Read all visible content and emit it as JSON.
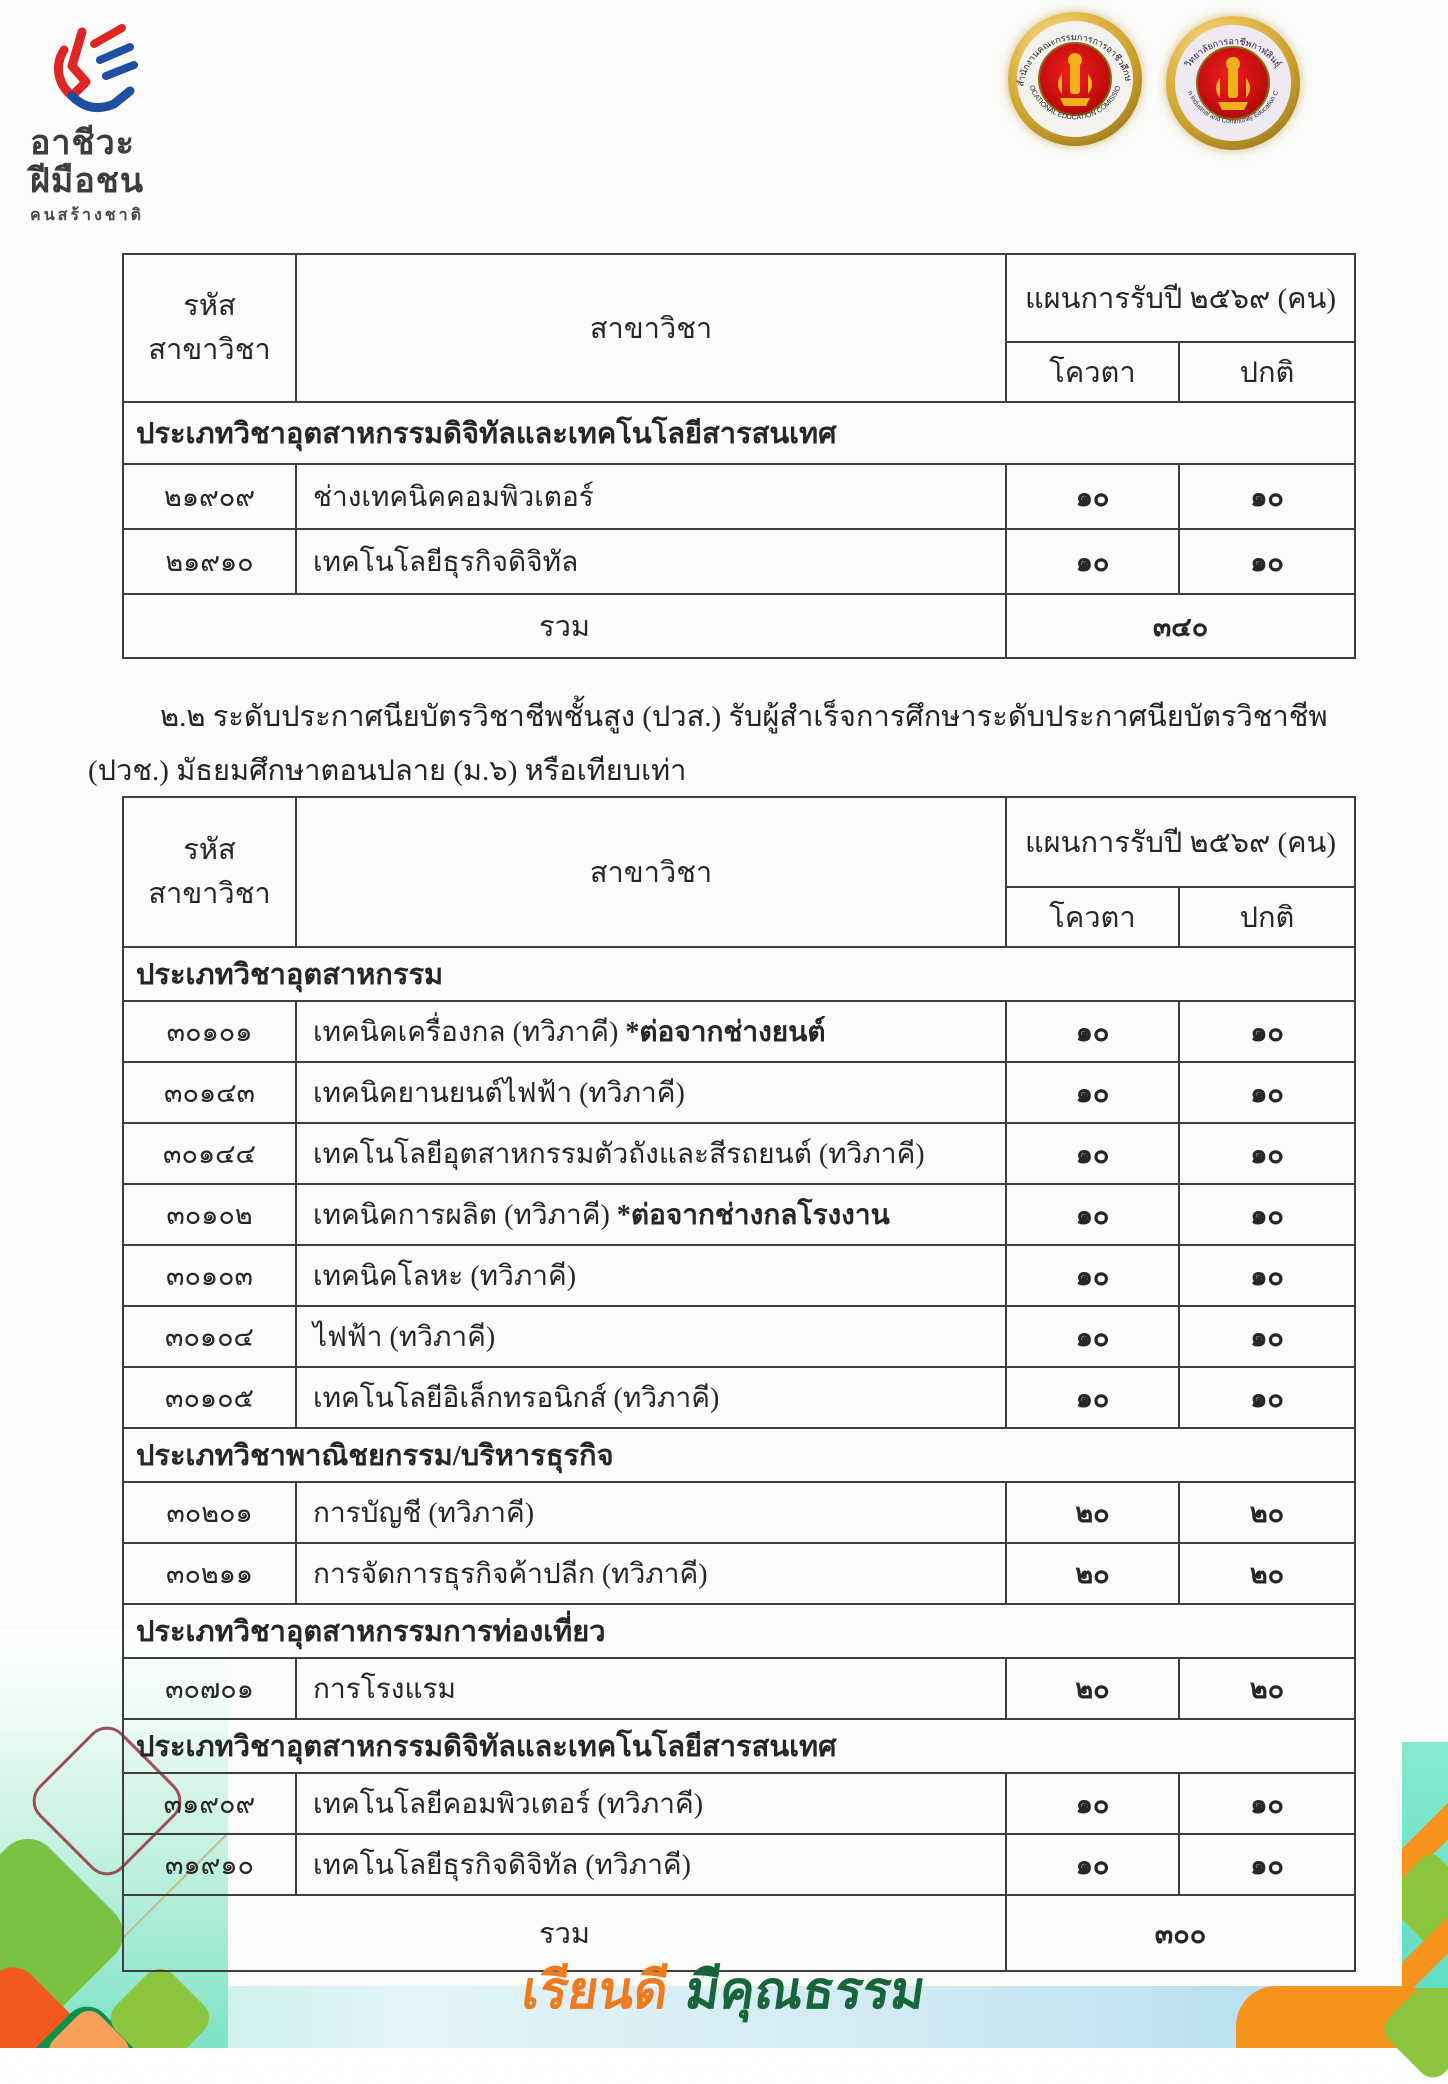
{
  "branding": {
    "logo_lines": [
      "อาชีวะ",
      "ฝีมือชน",
      "คนสร้างชาติ"
    ],
    "motto_part1": "เรียนดี",
    "motto_part2": "มีคุณธรรม",
    "motto_color1": "#f07b1f",
    "motto_color2": "#17663a",
    "logo_red": "#e02525",
    "logo_blue": "#1f4fa0"
  },
  "emblems": [
    {
      "thai": "สำนักงานคณะกรรมการการอาชีวศึกษา",
      "english": "VOCATIONAL EDUCATION COMISSION"
    },
    {
      "thai": "วิทยาลัยการอาชีพกาฬสินธุ์",
      "english": "Kalasin Industrial and Community Education College"
    }
  ],
  "intro": {
    "line1": "๒.๒ ระดับประกาศนียบัตรวิชาชีพชั้นสูง (ปวส.) รับผู้สำเร็จการศึกษาระดับประกาศนียบัตรวิชาชีพ",
    "line2": "(ปวช.)  มัธยมศึกษาตอนปลาย (ม.๖) หรือเทียบเท่า"
  },
  "tables": [
    {
      "header": {
        "col_code_line1": "รหัส",
        "col_code_line2": "สาขาวิชา",
        "col_major": "สาขาวิชา",
        "col_plan": "แผนการรับปี ๒๕๖๙ (คน)",
        "col_quota": "โควตา",
        "col_regular": "ปกติ"
      },
      "rows": [
        {
          "type": "section",
          "label": "ประเภทวิชาอุตสาหกรรมดิจิทัลและเทคโนโลยีสารสนเทศ"
        },
        {
          "type": "data",
          "code": "๒๑๙๐๙",
          "name": "ช่างเทคนิคคอมพิวเตอร์",
          "note": "",
          "quota": "๑๐",
          "regular": "๑๐"
        },
        {
          "type": "data",
          "code": "๒๑๙๑๐",
          "name": "เทคโนโลยีธุรกิจดิจิทัล",
          "note": "",
          "quota": "๑๐",
          "regular": "๑๐"
        },
        {
          "type": "total",
          "label": "รวม",
          "total": "๓๔๐"
        }
      ]
    },
    {
      "header": {
        "col_code_line1": "รหัส",
        "col_code_line2": "สาขาวิชา",
        "col_major": "สาขาวิชา",
        "col_plan": "แผนการรับปี ๒๕๖๙ (คน)",
        "col_quota": "โควตา",
        "col_regular": "ปกติ"
      },
      "rows": [
        {
          "type": "section",
          "label": "ประเภทวิชาอุตสาหกรรม"
        },
        {
          "type": "data",
          "code": "๓๐๑๐๑",
          "name": "เทคนิคเครื่องกล (ทวิภาคี) ",
          "note": "*ต่อจากช่างยนต์",
          "quota": "๑๐",
          "regular": "๑๐"
        },
        {
          "type": "data",
          "code": "๓๐๑๔๓",
          "name": "เทคนิคยานยนต์ไฟฟ้า (ทวิภาคี)",
          "note": "",
          "quota": "๑๐",
          "regular": "๑๐"
        },
        {
          "type": "data",
          "code": "๓๐๑๔๔",
          "name": "เทคโนโลยีอุตสาหกรรมตัวถังและสีรถยนต์ (ทวิภาคี)",
          "note": "",
          "quota": "๑๐",
          "regular": "๑๐"
        },
        {
          "type": "data",
          "code": "๓๐๑๐๒",
          "name": "เทคนิคการผลิต (ทวิภาคี) ",
          "note": "*ต่อจากช่างกลโรงงาน",
          "quota": "๑๐",
          "regular": "๑๐"
        },
        {
          "type": "data",
          "code": "๓๐๑๐๓",
          "name": "เทคนิคโลหะ (ทวิภาคี)",
          "note": "",
          "quota": "๑๐",
          "regular": "๑๐"
        },
        {
          "type": "data",
          "code": "๓๐๑๐๔",
          "name": "ไฟฟ้า (ทวิภาคี)",
          "note": "",
          "quota": "๑๐",
          "regular": "๑๐"
        },
        {
          "type": "data",
          "code": "๓๐๑๐๕",
          "name": "เทคโนโลยีอิเล็กทรอนิกส์ (ทวิภาคี)",
          "note": "",
          "quota": "๑๐",
          "regular": "๑๐"
        },
        {
          "type": "section",
          "label": "ประเภทวิชาพาณิชยกรรม/บริหารธุรกิจ"
        },
        {
          "type": "data",
          "code": "๓๐๒๐๑",
          "name": "การบัญชี (ทวิภาคี)",
          "note": "",
          "quota": "๒๐",
          "regular": "๒๐"
        },
        {
          "type": "data",
          "code": "๓๐๒๑๑",
          "name": "การจัดการธุรกิจค้าปลีก (ทวิภาคี)",
          "note": "",
          "quota": "๒๐",
          "regular": "๒๐"
        },
        {
          "type": "section",
          "label": "ประเภทวิชาอุตสาหกรรมการท่องเที่ยว"
        },
        {
          "type": "data",
          "code": "๓๐๗๐๑",
          "name": "การโรงแรม",
          "note": "",
          "quota": "๒๐",
          "regular": "๒๐"
        },
        {
          "type": "section",
          "label": "ประเภทวิชาอุตสาหกรรมดิจิทัลและเทคโนโลยีสารสนเทศ"
        },
        {
          "type": "data",
          "code": "๓๑๙๐๙",
          "name": "เทคโนโลยีคอมพิวเตอร์ (ทวิภาคี)",
          "note": "",
          "quota": "๑๐",
          "regular": "๑๐"
        },
        {
          "type": "data",
          "code": "๓๑๙๑๐",
          "name": "เทคโนโลยีธุรกิจดิจิทัล  (ทวิภาคี)",
          "note": "",
          "quota": "๑๐",
          "regular": "๑๐"
        },
        {
          "type": "total",
          "label": "รวม",
          "total": "๓๐๐"
        }
      ]
    }
  ]
}
